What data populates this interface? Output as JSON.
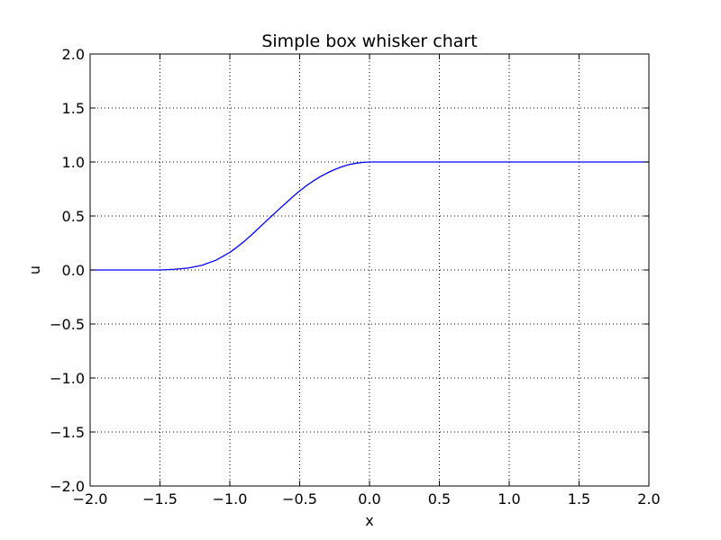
{
  "chart_data": {
    "type": "line",
    "title": "Simple box whisker chart",
    "xlabel": "x",
    "ylabel": "u",
    "xlim": [
      -2.0,
      2.0
    ],
    "ylim": [
      -2.0,
      2.0
    ],
    "xticks": [
      -2.0,
      -1.5,
      -1.0,
      -0.5,
      0.0,
      0.5,
      1.0,
      1.5,
      2.0
    ],
    "yticks": [
      -2.0,
      -1.5,
      -1.0,
      -0.5,
      0.0,
      0.5,
      1.0,
      1.5,
      2.0
    ],
    "xtick_labels": [
      "−2.0",
      "−1.5",
      "−1.0",
      "−0.5",
      "0.0",
      "0.5",
      "1.0",
      "1.5",
      "2.0"
    ],
    "ytick_labels": [
      "−2.0",
      "−1.5",
      "−1.0",
      "−0.5",
      "0.0",
      "0.5",
      "1.0",
      "1.5",
      "2.0"
    ],
    "grid": true,
    "series": [
      {
        "color": "#0000ff",
        "x": [
          -2.0,
          -1.6,
          -1.5,
          -1.4,
          -1.3,
          -1.2,
          -1.1,
          -1.0,
          -0.95,
          -0.9,
          -0.85,
          -0.8,
          -0.75,
          -0.7,
          -0.65,
          -0.6,
          -0.55,
          -0.5,
          -0.45,
          -0.4,
          -0.35,
          -0.3,
          -0.25,
          -0.2,
          -0.15,
          -0.1,
          -0.05,
          0.0,
          2.0
        ],
        "y": [
          0.0,
          0.0,
          0.0,
          0.006,
          0.018,
          0.044,
          0.09,
          0.163,
          0.21,
          0.262,
          0.319,
          0.379,
          0.44,
          0.5,
          0.56,
          0.619,
          0.677,
          0.732,
          0.782,
          0.827,
          0.866,
          0.9,
          0.93,
          0.955,
          0.975,
          0.988,
          0.996,
          1.0,
          1.0
        ]
      }
    ]
  }
}
